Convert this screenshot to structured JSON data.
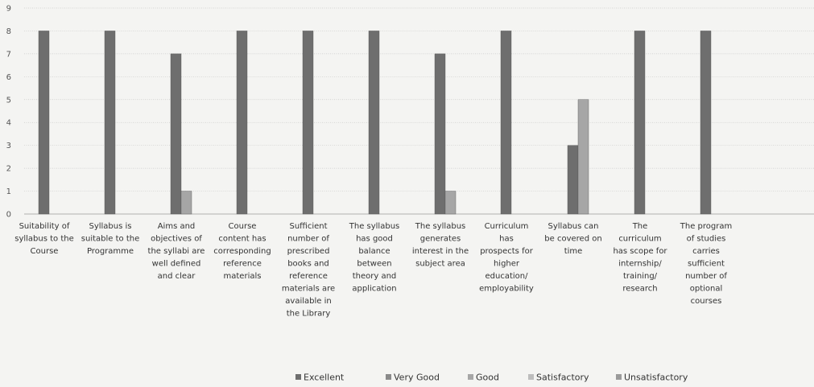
{
  "chart_data": {
    "type": "bar",
    "title": "",
    "xlabel": "",
    "ylabel": "",
    "ylim": [
      0,
      9
    ],
    "y_ticks": [
      0,
      1,
      2,
      3,
      4,
      5,
      6,
      7,
      8,
      9
    ],
    "grid": true,
    "legend_position": "bottom",
    "categories": [
      "Suitability of syllabus to the Course",
      "Syllabus is suitable to the Programme",
      "Aims and objectives of the syllabi are well defined and clear",
      "Course content has corresponding reference materials",
      "Sufficient number of prescribed books and reference materials are available in the Library",
      "The syllabus has good balance between theory and application",
      "The syllabus generates interest in the subject area",
      "Curriculum has prospects for higher education/ employability",
      "Syllabus can be covered on time",
      "The curriculum has scope for internship/ training/ research",
      "The program of studies carries sufficient number of optional courses"
    ],
    "category_label_lines": [
      [
        "Suitability of",
        "syllabus to the",
        "Course"
      ],
      [
        "Syllabus is",
        "suitable to the",
        "Programme"
      ],
      [
        "Aims and",
        "objectives of",
        "the syllabi are",
        "well defined",
        "and clear"
      ],
      [
        "Course",
        "content has",
        "corresponding",
        "reference",
        "materials"
      ],
      [
        "Sufficient",
        "number of",
        "prescribed",
        "books and",
        "reference",
        "materials are",
        "available in",
        "the Library"
      ],
      [
        "The syllabus",
        "has good",
        "balance",
        "between",
        "theory and",
        "application"
      ],
      [
        "The syllabus",
        "generates",
        "interest in the",
        "subject area"
      ],
      [
        "Curriculum",
        "has",
        "prospects for",
        "higher",
        "education/",
        "employability"
      ],
      [
        "Syllabus can",
        "be covered on",
        "time"
      ],
      [
        "The",
        "curriculum",
        "has scope for",
        "internship/",
        "training/",
        "research"
      ],
      [
        "The program",
        "of studies",
        "carries",
        "sufficient",
        "number of",
        "optional",
        "courses"
      ]
    ],
    "series": [
      {
        "name": "Excellent",
        "color": "#6e6e6e",
        "values": [
          8,
          8,
          7,
          8,
          8,
          8,
          7,
          8,
          3,
          8,
          8
        ]
      },
      {
        "name": "Very Good",
        "color": "#8a8a8a",
        "values": [
          0,
          0,
          0,
          0,
          0,
          0,
          0,
          0,
          0,
          0,
          0
        ]
      },
      {
        "name": "Good",
        "color": "#a6a6a6",
        "values": [
          0,
          0,
          1,
          0,
          0,
          0,
          1,
          0,
          5,
          0,
          0
        ]
      },
      {
        "name": "Satisfactory",
        "color": "#bdbdbd",
        "values": [
          0,
          0,
          0,
          0,
          0,
          0,
          0,
          0,
          0,
          0,
          0
        ]
      },
      {
        "name": "Unsatisfactory",
        "color": "#9a9a9a",
        "values": [
          0,
          0,
          0,
          0,
          0,
          0,
          0,
          0,
          0,
          0,
          0
        ]
      }
    ]
  }
}
